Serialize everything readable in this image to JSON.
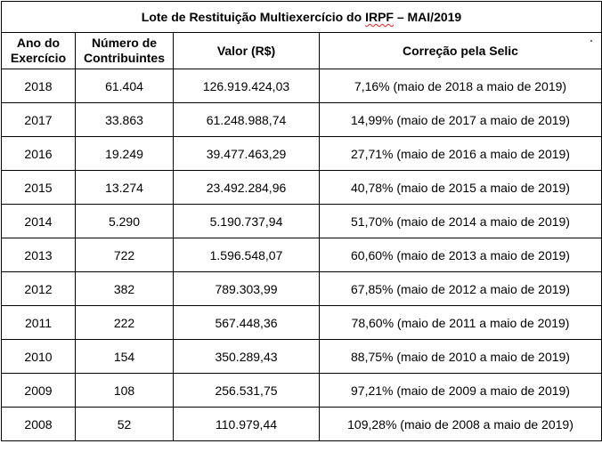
{
  "table": {
    "title_prefix": "Lote de Restituição Multiexercício do ",
    "title_flagged": "IRPF",
    "title_suffix": " – MAI/2019",
    "headers": [
      {
        "line1": "Ano do",
        "line2": "Exercício"
      },
      {
        "line1": "Número de",
        "line2": "Contribuintes"
      },
      {
        "line1": "Valor (R$)",
        "line2": ""
      },
      {
        "line1": "Correção pela Selic",
        "line2": ""
      }
    ],
    "rows": [
      {
        "year": "2018",
        "contributors": "61.404",
        "value": "126.919.424,03",
        "correction": "7,16% (maio de 2018 a maio de 2019)"
      },
      {
        "year": "2017",
        "contributors": "33.863",
        "value": "61.248.988,74",
        "correction": "14,99% (maio de 2017 a  maio de 2019)"
      },
      {
        "year": "2016",
        "contributors": "19.249",
        "value": "39.477.463,29",
        "correction": "27,71% (maio de 2016 a  maio  de 2019)"
      },
      {
        "year": "2015",
        "contributors": "13.274",
        "value": "23.492.284,96",
        "correction": "40,78% (maio de 2015 a  maio  de 2019)"
      },
      {
        "year": "2014",
        "contributors": "5.290",
        "value": "5.190.737,94",
        "correction": "51,70% (maio de 2014 a  maio  de 2019)"
      },
      {
        "year": "2013",
        "contributors": "722",
        "value": "1.596.548,07",
        "correction": "60,60% (maio de 2013 a  maio  de 2019)"
      },
      {
        "year": "2012",
        "contributors": "382",
        "value": "789.303,99",
        "correction": "67,85% (maio de 2012 a  maio  de 2019)"
      },
      {
        "year": "2011",
        "contributors": "222",
        "value": "567.448,36",
        "correction": "78,60% (maio de 2011 a  maio  de 2019)"
      },
      {
        "year": "2010",
        "contributors": "154",
        "value": "350.289,43",
        "correction": "88,75% (maio de 2010 a  maio  de 2019)"
      },
      {
        "year": "2009",
        "contributors": "108",
        "value": "256.531,75",
        "correction": "97,21% (maio de 2009 a  maio  de 2019)"
      },
      {
        "year": "2008",
        "contributors": "52",
        "value": "110.979,44",
        "correction": "109,28% (maio de 2008 a  maio  de 2019)"
      }
    ]
  },
  "colors": {
    "border": "#000000",
    "text": "#000000",
    "spellcheck_underline": "#e02020"
  }
}
